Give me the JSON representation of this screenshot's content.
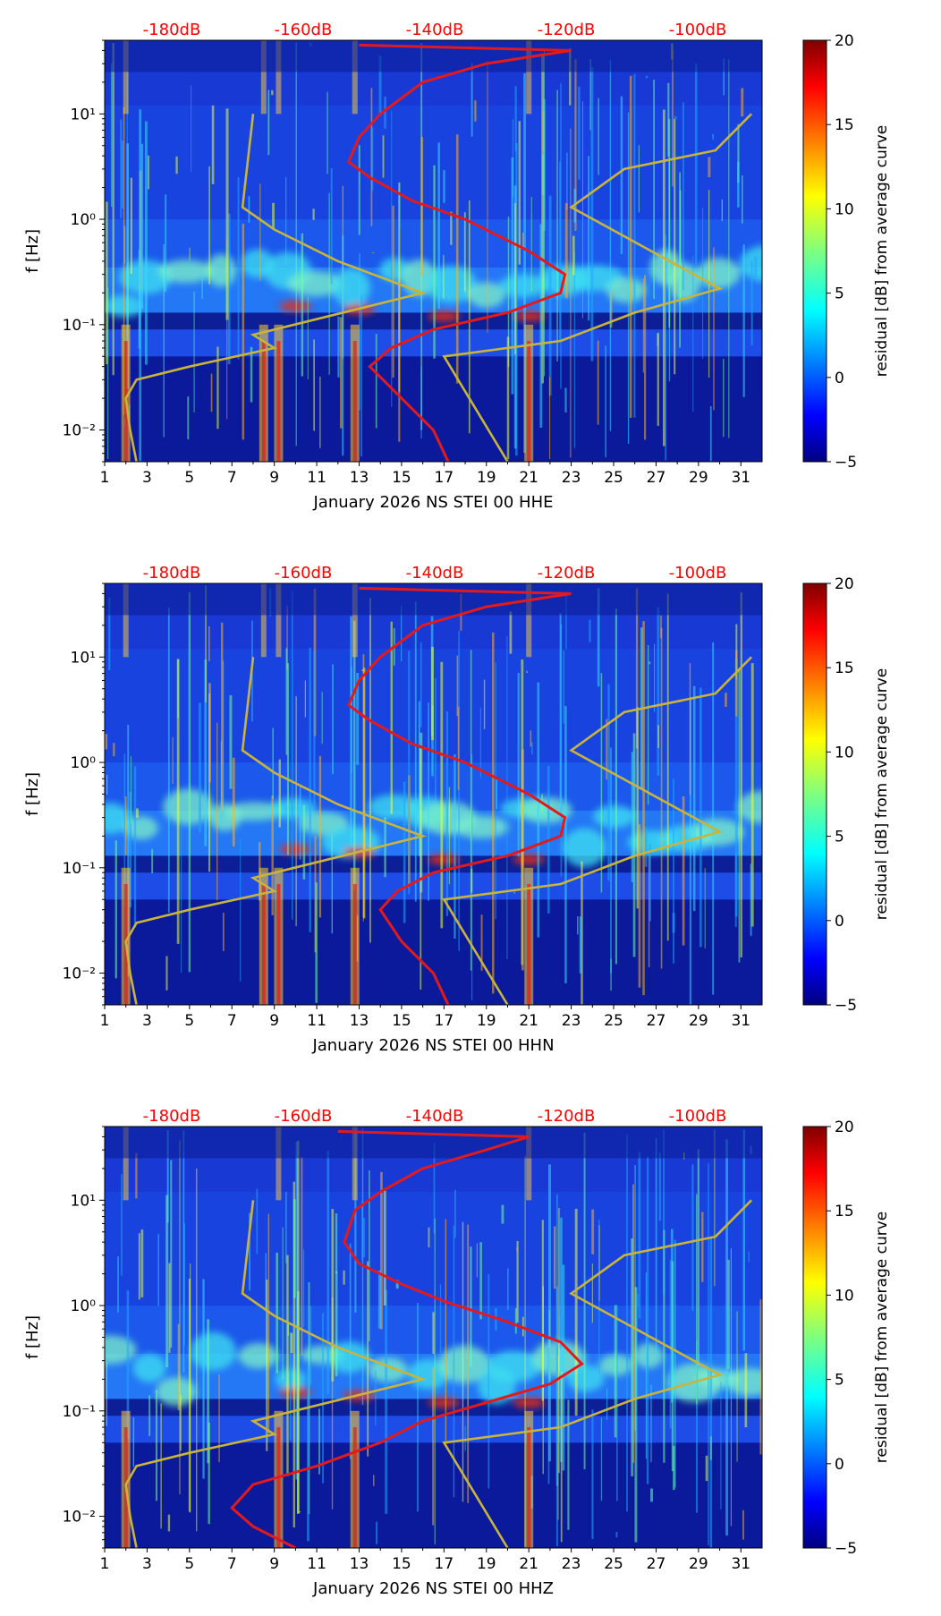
{
  "figure": {
    "description_type": "spectrogram residual panels",
    "colors": {
      "top_label": "#ff0000",
      "pdf_curve": "#e31a1c",
      "nlnm_curve": "#c8b43c"
    }
  },
  "chart_data": [
    {
      "type": "heatmap",
      "title": "",
      "xlabel": "January 2026 NS STEI 00 HHE",
      "ylabel": "f [Hz]",
      "x_ticks": [
        "1",
        "3",
        "5",
        "7",
        "9",
        "11",
        "13",
        "15",
        "17",
        "19",
        "21",
        "23",
        "25",
        "27",
        "29",
        "31"
      ],
      "x_range": [
        1,
        32
      ],
      "y_scale": "log",
      "y_range": [
        0.005,
        50
      ],
      "y_ticks": [
        "10⁻²",
        "10⁻¹",
        "10⁰",
        "10¹"
      ],
      "top_axis_labels": [
        "-180dB",
        "-160dB",
        "-140dB",
        "-120dB",
        "-100dB"
      ],
      "colorbar": {
        "label": "residual [dB] from average curve",
        "range": [
          -5,
          20
        ],
        "ticks": [
          "20",
          "15",
          "10",
          "5",
          "0",
          "−5"
        ]
      },
      "hot_days": [
        2,
        8.5,
        9.2,
        12.8,
        21
      ],
      "red_curve": [
        [
          17.2,
          0.005
        ],
        [
          16.5,
          0.01
        ],
        [
          15,
          0.02
        ],
        [
          13.5,
          0.04
        ],
        [
          14.5,
          0.06
        ],
        [
          16.5,
          0.09
        ],
        [
          20,
          0.13
        ],
        [
          22.5,
          0.2
        ],
        [
          22.7,
          0.3
        ],
        [
          21,
          0.5
        ],
        [
          18,
          1
        ],
        [
          15.5,
          1.5
        ],
        [
          13.5,
          2.5
        ],
        [
          12.5,
          3.5
        ],
        [
          13,
          6
        ],
        [
          14,
          10
        ],
        [
          16,
          20
        ],
        [
          19,
          30
        ],
        [
          23,
          40
        ],
        [
          13,
          45
        ]
      ],
      "yellow_curve": [
        [
          2.5,
          0.005
        ],
        [
          2.2,
          0.01
        ],
        [
          2,
          0.02
        ],
        [
          2.5,
          0.03
        ],
        [
          5,
          0.04
        ],
        [
          9,
          0.06
        ],
        [
          8,
          0.08
        ],
        [
          16,
          0.2
        ],
        [
          12,
          0.4
        ],
        [
          9,
          0.8
        ],
        [
          7.5,
          1.3
        ],
        [
          8,
          10
        ]
      ]
    },
    {
      "type": "heatmap",
      "title": "",
      "xlabel": "January 2026 NS STEI 00 HHN",
      "ylabel": "f [Hz]",
      "x_ticks": [
        "1",
        "3",
        "5",
        "7",
        "9",
        "11",
        "13",
        "15",
        "17",
        "19",
        "21",
        "23",
        "25",
        "27",
        "29",
        "31"
      ],
      "x_range": [
        1,
        32
      ],
      "y_scale": "log",
      "y_range": [
        0.005,
        50
      ],
      "y_ticks": [
        "10⁻²",
        "10⁻¹",
        "10⁰",
        "10¹"
      ],
      "top_axis_labels": [
        "-180dB",
        "-160dB",
        "-140dB",
        "-120dB",
        "-100dB"
      ],
      "colorbar": {
        "label": "residual [dB] from average curve",
        "range": [
          -5,
          20
        ],
        "ticks": [
          "20",
          "15",
          "10",
          "5",
          "0",
          "−5"
        ]
      },
      "hot_days": [
        2,
        8.5,
        9.2,
        12.8,
        21
      ],
      "red_curve": [
        [
          17.2,
          0.005
        ],
        [
          16.5,
          0.01
        ],
        [
          15,
          0.02
        ],
        [
          14,
          0.04
        ],
        [
          14.8,
          0.06
        ],
        [
          16.5,
          0.09
        ],
        [
          20,
          0.13
        ],
        [
          22.5,
          0.2
        ],
        [
          22.7,
          0.3
        ],
        [
          21,
          0.5
        ],
        [
          18,
          1
        ],
        [
          15.5,
          1.5
        ],
        [
          13.5,
          2.5
        ],
        [
          12.5,
          3.5
        ],
        [
          13,
          6
        ],
        [
          14,
          10
        ],
        [
          16,
          20
        ],
        [
          19,
          30
        ],
        [
          23,
          40
        ],
        [
          13,
          45
        ]
      ],
      "yellow_curve": [
        [
          2.5,
          0.005
        ],
        [
          2.2,
          0.01
        ],
        [
          2,
          0.02
        ],
        [
          2.5,
          0.03
        ],
        [
          5,
          0.04
        ],
        [
          9,
          0.06
        ],
        [
          8,
          0.08
        ],
        [
          16,
          0.2
        ],
        [
          12,
          0.4
        ],
        [
          9,
          0.8
        ],
        [
          7.5,
          1.3
        ],
        [
          8,
          10
        ]
      ]
    },
    {
      "type": "heatmap",
      "title": "",
      "xlabel": "January 2026 NS STEI 00 HHZ",
      "ylabel": "f [Hz]",
      "x_ticks": [
        "1",
        "3",
        "5",
        "7",
        "9",
        "11",
        "13",
        "15",
        "17",
        "19",
        "21",
        "23",
        "25",
        "27",
        "29",
        "31"
      ],
      "x_range": [
        1,
        32
      ],
      "y_scale": "log",
      "y_range": [
        0.005,
        50
      ],
      "y_ticks": [
        "10⁻²",
        "10⁻¹",
        "10⁰",
        "10¹"
      ],
      "top_axis_labels": [
        "-180dB",
        "-160dB",
        "-140dB",
        "-120dB",
        "-100dB"
      ],
      "colorbar": {
        "label": "residual [dB] from average curve",
        "range": [
          -5,
          20
        ],
        "ticks": [
          "20",
          "15",
          "10",
          "5",
          "0",
          "−5"
        ]
      },
      "hot_days": [
        2,
        9.2,
        12.8,
        21
      ],
      "red_curve": [
        [
          10,
          0.005
        ],
        [
          8,
          0.008
        ],
        [
          7,
          0.012
        ],
        [
          8,
          0.02
        ],
        [
          11,
          0.03
        ],
        [
          14,
          0.05
        ],
        [
          16,
          0.08
        ],
        [
          19,
          0.12
        ],
        [
          22,
          0.18
        ],
        [
          23.5,
          0.28
        ],
        [
          22.5,
          0.45
        ],
        [
          20,
          0.7
        ],
        [
          17,
          1.1
        ],
        [
          15,
          1.6
        ],
        [
          13,
          2.5
        ],
        [
          12.3,
          4
        ],
        [
          12.8,
          8
        ],
        [
          14,
          12
        ],
        [
          16,
          20
        ],
        [
          19,
          30
        ],
        [
          21,
          40
        ],
        [
          12,
          45
        ]
      ],
      "yellow_curve": [
        [
          2.5,
          0.005
        ],
        [
          2.2,
          0.01
        ],
        [
          2,
          0.02
        ],
        [
          2.5,
          0.03
        ],
        [
          5,
          0.04
        ],
        [
          9,
          0.06
        ],
        [
          8,
          0.08
        ],
        [
          16,
          0.2
        ],
        [
          12,
          0.4
        ],
        [
          9,
          0.8
        ],
        [
          7.5,
          1.3
        ],
        [
          8,
          10
        ]
      ]
    }
  ]
}
